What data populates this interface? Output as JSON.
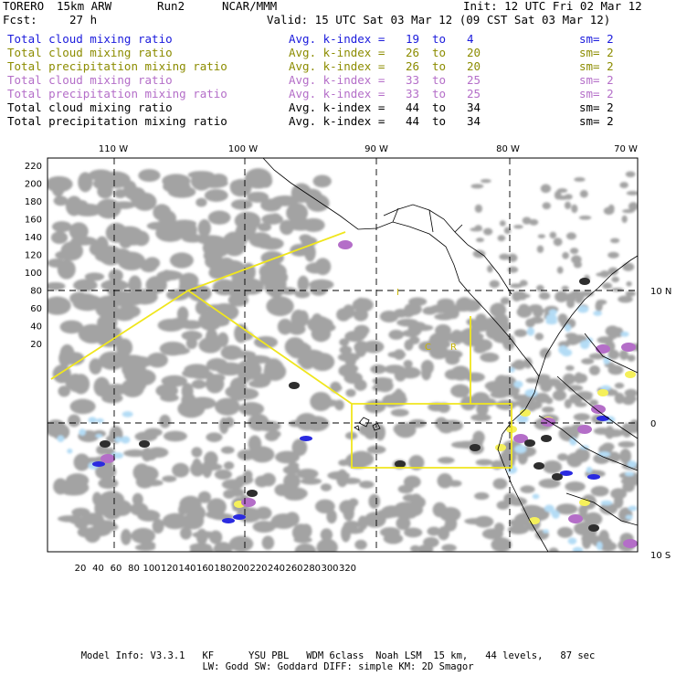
{
  "header": {
    "model": "TORERO",
    "resolution": "15km ARW",
    "run": "Run2",
    "org": "NCAR/MMM",
    "init": "Init: 12 UTC Fri 02 Mar 12",
    "fcst_label": "Fcst:",
    "fcst_value": "27 h",
    "valid": "Valid: 15 UTC Sat 03 Mar 12 (09 CST Sat 03 Mar 12)"
  },
  "legend_rows": [
    {
      "field": "Total cloud mixing ratio",
      "avg": "Avg. k-index =",
      "a": "19",
      "to": "to",
      "b": "4",
      "sm": "sm= 2",
      "color": "#1a1adc"
    },
    {
      "field": "Total cloud mixing ratio",
      "avg": "Avg. k-index =",
      "a": "26",
      "to": "to",
      "b": "20",
      "sm": "sm= 2",
      "color": "#8c8c00"
    },
    {
      "field": "Total precipitation mixing ratio",
      "avg": "Avg. k-index =",
      "a": "26",
      "to": "to",
      "b": "20",
      "sm": "sm= 2",
      "color": "#8c8c00"
    },
    {
      "field": "Total cloud mixing ratio",
      "avg": "Avg. k-index =",
      "a": "33",
      "to": "to",
      "b": "25",
      "sm": "sm= 2",
      "color": "#b46ec8"
    },
    {
      "field": "Total precipitation mixing ratio",
      "avg": "Avg. k-index =",
      "a": "33",
      "to": "to",
      "b": "25",
      "sm": "sm= 2",
      "color": "#b46ec8"
    },
    {
      "field": "Total cloud mixing ratio",
      "avg": "Avg. k-index =",
      "a": "44",
      "to": "to",
      "b": "34",
      "sm": "sm= 2",
      "color": "#000000"
    },
    {
      "field": "Total precipitation mixing ratio",
      "avg": "Avg. k-index =",
      "a": "44",
      "to": "to",
      "b": "34",
      "sm": "sm= 2",
      "color": "#000000"
    }
  ],
  "map": {
    "lon_labels": [
      "110 W",
      "100 W",
      "90 W",
      "80 W",
      "70 W"
    ],
    "lat_labels": [
      "10 N",
      "0",
      "10 S"
    ],
    "y_ticks": [
      "220",
      "200",
      "180",
      "160",
      "140",
      "120",
      "100",
      "80",
      "60",
      "40",
      "20"
    ],
    "x_ticks": [
      "20",
      "40",
      "60",
      "80",
      "100",
      "120",
      "140",
      "160",
      "180",
      "200",
      "220",
      "240",
      "260",
      "280",
      "300",
      "320"
    ],
    "region_labels": [
      "I",
      "C",
      "R"
    ],
    "colors": {
      "cloud": "#a3a3a3",
      "dark": "#2e2e2e",
      "yellow": "#f5f05a",
      "purple": "#b46ec8",
      "blue": "#2a2ae0",
      "lightblue": "#b4dcf5",
      "box": "#f0e61e"
    }
  },
  "footer": {
    "line1": "Model Info: V3.3.1   KF      YSU PBL   WDM 6class  Noah LSM  15 km,   44 levels,   87 sec",
    "line2": "LW: Godd SW: Goddard DIFF: simple KM: 2D Smagor"
  }
}
